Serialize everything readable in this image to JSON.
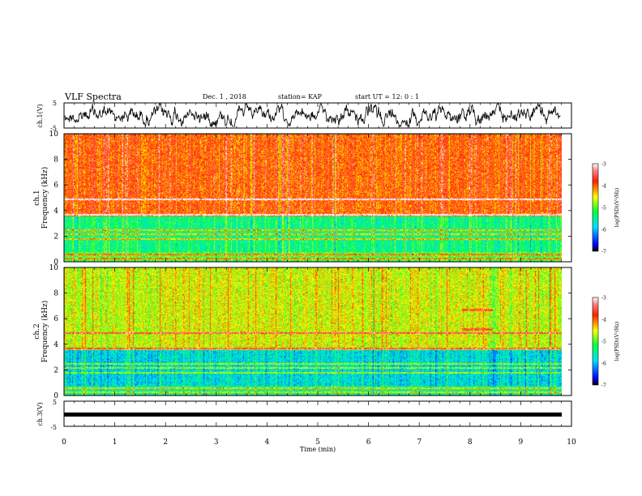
{
  "header": {
    "title": "VLF Spectra",
    "date": "Dec. 1  , 2018",
    "station": "station= KAP",
    "start": "start  UT  =   12: 0   : 1"
  },
  "chart_data": [
    {
      "type": "line",
      "name": "ch1-waveform",
      "ylabel": "ch.1(V)",
      "ylim": [
        -5,
        5
      ],
      "yticks": [
        "5",
        "-5"
      ],
      "xlim": [
        0,
        10
      ]
    },
    {
      "type": "heatmap",
      "name": "ch1-spectrogram",
      "ylabel_line1": "ch.1",
      "ylabel_line2": "Frequency  (kHz)",
      "ylim": [
        0,
        10
      ],
      "yticks": [
        "0",
        "2",
        "4",
        "6",
        "8",
        "10"
      ],
      "xlim": [
        0,
        10
      ],
      "colorbar": {
        "label": "log(PSD)(V²/Hz)",
        "ticks": [
          "-3",
          "-4",
          "-5",
          "-6",
          "-7"
        ],
        "range": [
          -7,
          -3
        ]
      }
    },
    {
      "type": "heatmap",
      "name": "ch2-spectrogram",
      "ylabel_line1": "ch.2",
      "ylabel_line2": "Frequency  (kHz)",
      "ylim": [
        0,
        10
      ],
      "yticks": [
        "0",
        "2",
        "4",
        "6",
        "8",
        "10"
      ],
      "xlim": [
        0,
        10
      ],
      "colorbar": {
        "label": "log(PSD)(V²/Hz)",
        "ticks": [
          "-3",
          "-4",
          "-5",
          "-6",
          "-7"
        ],
        "range": [
          -7,
          -3
        ]
      }
    },
    {
      "type": "line",
      "name": "ch3-waveform",
      "ylabel": "ch.3(V)",
      "ylim": [
        -5,
        5
      ],
      "yticks": [
        "5",
        "-5"
      ],
      "xlim": [
        0,
        10
      ],
      "xlabel": "Time  (min)",
      "xticks": [
        "0",
        "1",
        "2",
        "3",
        "4",
        "5",
        "6",
        "7",
        "8",
        "9",
        "10"
      ]
    }
  ]
}
